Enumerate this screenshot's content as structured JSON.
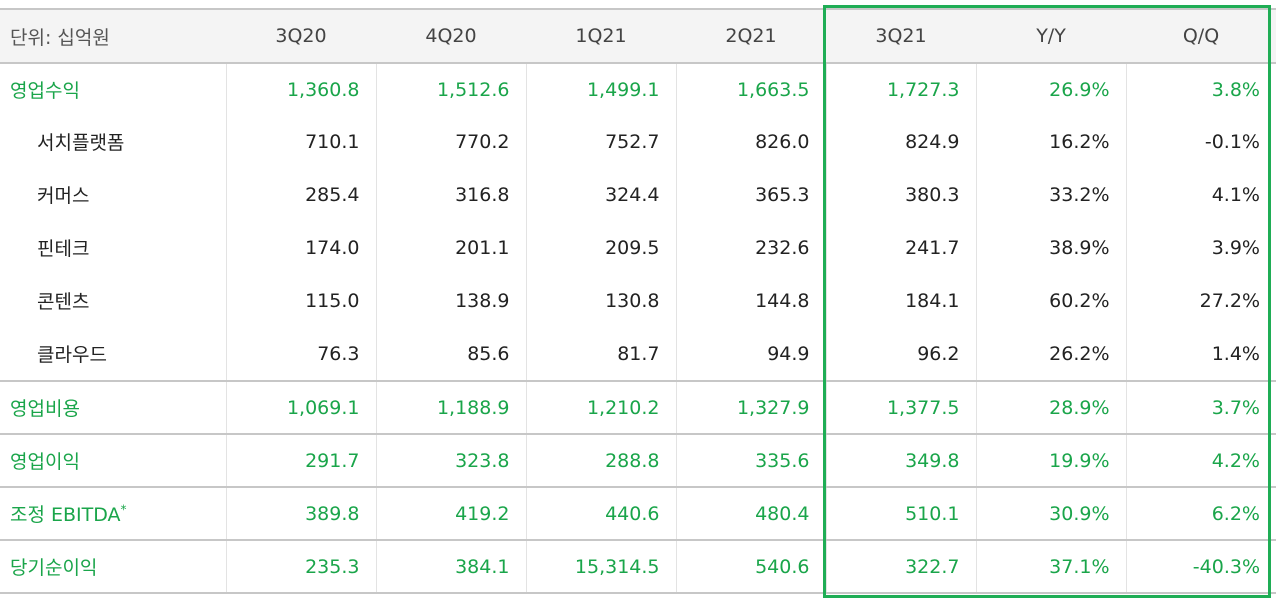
{
  "header": {
    "unit_label": "단위: 십억원",
    "columns": [
      "3Q20",
      "4Q20",
      "1Q21",
      "2Q21",
      "3Q21",
      "Y/Y",
      "Q/Q"
    ]
  },
  "rows": [
    {
      "label": "영업수익",
      "values": [
        "1,360.8",
        "1,512.6",
        "1,499.1",
        "1,663.5",
        "1,727.3",
        "26.9%",
        "3.8%"
      ]
    },
    {
      "label": "서치플랫폼",
      "values": [
        "710.1",
        "770.2",
        "752.7",
        "826.0",
        "824.9",
        "16.2%",
        "-0.1%"
      ]
    },
    {
      "label": "커머스",
      "values": [
        "285.4",
        "316.8",
        "324.4",
        "365.3",
        "380.3",
        "33.2%",
        "4.1%"
      ]
    },
    {
      "label": "핀테크",
      "values": [
        "174.0",
        "201.1",
        "209.5",
        "232.6",
        "241.7",
        "38.9%",
        "3.9%"
      ]
    },
    {
      "label": "콘텐츠",
      "values": [
        "115.0",
        "138.9",
        "130.8",
        "144.8",
        "184.1",
        "60.2%",
        "27.2%"
      ]
    },
    {
      "label": "클라우드",
      "values": [
        "76.3",
        "85.6",
        "81.7",
        "94.9",
        "96.2",
        "26.2%",
        "1.4%"
      ]
    },
    {
      "label": "영업비용",
      "values": [
        "1,069.1",
        "1,188.9",
        "1,210.2",
        "1,327.9",
        "1,377.5",
        "28.9%",
        "3.7%"
      ]
    },
    {
      "label": "영업이익",
      "values": [
        "291.7",
        "323.8",
        "288.8",
        "335.6",
        "349.8",
        "19.9%",
        "4.2%"
      ]
    },
    {
      "label": "조정 EBITDA",
      "label_mark": "*",
      "values": [
        "389.8",
        "419.2",
        "440.6",
        "480.4",
        "510.1",
        "30.9%",
        "6.2%"
      ]
    },
    {
      "label": "당기순이익",
      "values": [
        "235.3",
        "384.1",
        "15,314.5",
        "540.6",
        "322.7",
        "37.1%",
        "-40.3%"
      ]
    }
  ],
  "colors": {
    "accent_green": "#1aa54a",
    "highlight_border": "#1fad55"
  }
}
